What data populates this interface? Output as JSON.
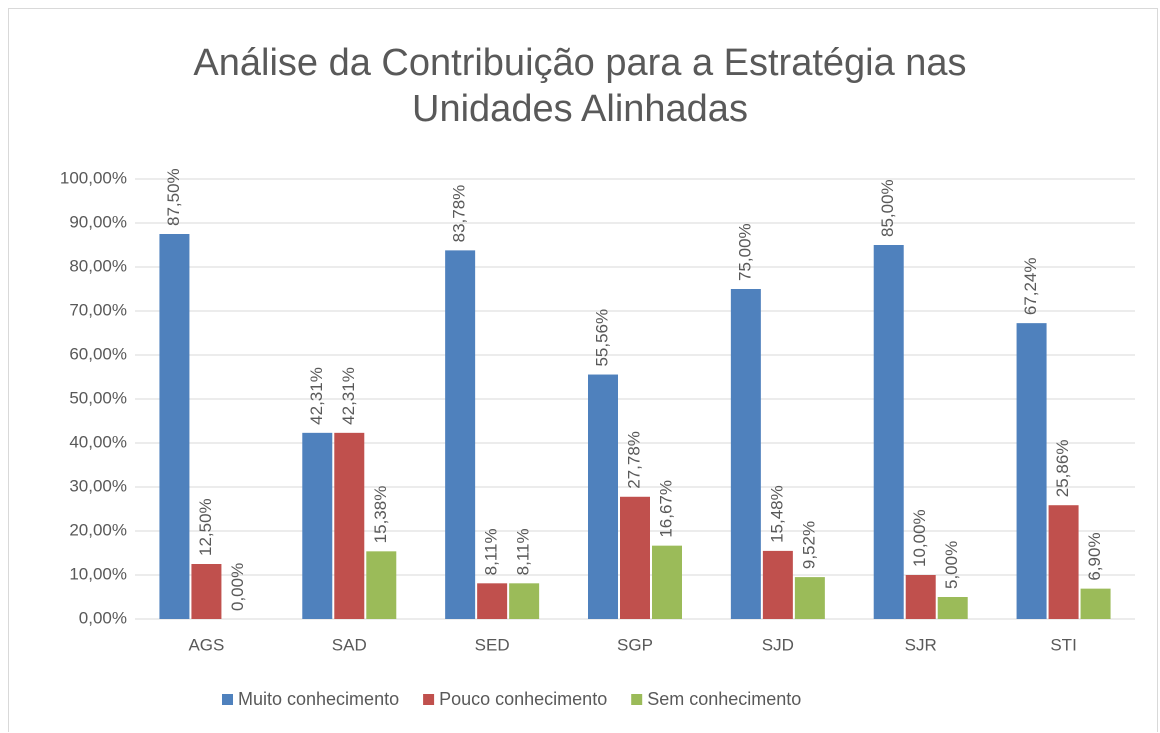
{
  "chart_data": {
    "type": "bar",
    "title": "Análise da Contribuição para a Estratégia nas Unidades Alinhadas",
    "categories": [
      "AGS",
      "SAD",
      "SED",
      "SGP",
      "SJD",
      "SJR",
      "STI"
    ],
    "series": [
      {
        "name": "Muito conhecimento",
        "color": "#4f81bd",
        "values": [
          87.5,
          42.31,
          83.78,
          55.56,
          75,
          85,
          67.24
        ],
        "value_labels": [
          "87,50%",
          "42,31%",
          "83,78%",
          "55,56%",
          "75,00%",
          "85,00%",
          "67,24%"
        ]
      },
      {
        "name": "Pouco conhecimento",
        "color": "#c0504d",
        "values": [
          12.5,
          42.31,
          8.11,
          27.78,
          15.48,
          10,
          25.86
        ],
        "value_labels": [
          "12,50%",
          "42,31%",
          "8,11%",
          "27,78%",
          "15,48%",
          "10,00%",
          "25,86%"
        ]
      },
      {
        "name": "Sem conhecimento",
        "color": "#9bbb59",
        "values": [
          0,
          15.38,
          8.11,
          16.67,
          9.52,
          5,
          6.9
        ],
        "value_labels": [
          "0,00%",
          "15,38%",
          "8,11%",
          "16,67%",
          "9,52%",
          "5,00%",
          "6,90%"
        ]
      }
    ],
    "ylim": [
      0,
      100
    ],
    "yticks": [
      {
        "value": 0,
        "label": "0,00%"
      },
      {
        "value": 10,
        "label": "10,00%"
      },
      {
        "value": 20,
        "label": "20,00%"
      },
      {
        "value": 30,
        "label": "30,00%"
      },
      {
        "value": 40,
        "label": "40,00%"
      },
      {
        "value": 50,
        "label": "50,00%"
      },
      {
        "value": 60,
        "label": "60,00%"
      },
      {
        "value": 70,
        "label": "70,00%"
      },
      {
        "value": 80,
        "label": "80,00%"
      },
      {
        "value": 90,
        "label": "90,00%"
      },
      {
        "value": 100,
        "label": "100,00%"
      }
    ],
    "grid": true,
    "legend": "bottom"
  }
}
